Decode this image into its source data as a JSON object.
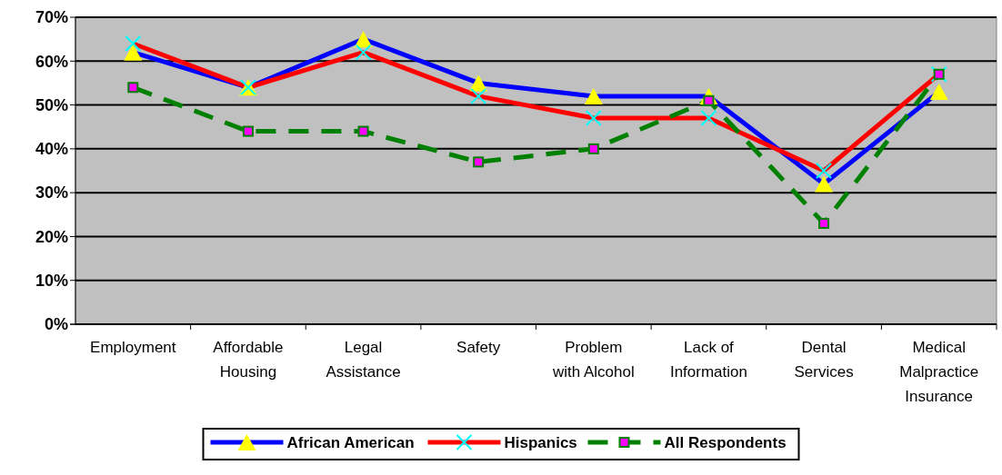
{
  "chart_data": {
    "type": "line",
    "categories": [
      "Employment",
      "Affordable Housing",
      "Legal Assistance",
      "Safety",
      "Problem with Alcohol",
      "Lack of Information",
      "Dental Services",
      "Medical Malpractice Insurance"
    ],
    "series": [
      {
        "name": "African American",
        "color": "#0000ff",
        "marker": "triangle",
        "line_style": "solid",
        "values": [
          62,
          54,
          65,
          55,
          52,
          52,
          32,
          53
        ]
      },
      {
        "name": "Hispanics",
        "color": "#ff0000",
        "marker": "cross",
        "line_style": "solid",
        "values": [
          64,
          54,
          62,
          52,
          47,
          47,
          35,
          57
        ]
      },
      {
        "name": "All Respondents",
        "color": "#008000",
        "marker": "square",
        "line_style": "dashed",
        "values": [
          54,
          44,
          44,
          37,
          40,
          51,
          23,
          57
        ]
      }
    ],
    "ylim": [
      0,
      70
    ],
    "yticks": [
      {
        "value": 0,
        "label": "0%"
      },
      {
        "value": 10,
        "label": "10%"
      },
      {
        "value": 20,
        "label": "20%"
      },
      {
        "value": 30,
        "label": "30%"
      },
      {
        "value": 40,
        "label": "40%"
      },
      {
        "value": 50,
        "label": "50%"
      },
      {
        "value": 60,
        "label": "60%"
      },
      {
        "value": 70,
        "label": "70%"
      }
    ],
    "grid": "y",
    "legend": "bottom"
  }
}
